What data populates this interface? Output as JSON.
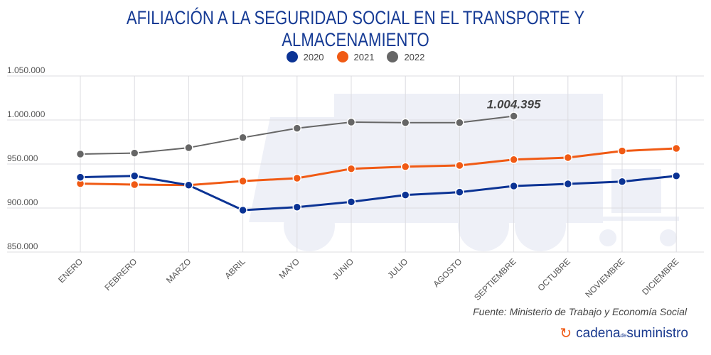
{
  "chart_data": {
    "type": "line",
    "title": "AFILIACIÓN A LA SEGURIDAD SOCIAL EN EL TRANSPORTE Y ALMACENAMIENTO",
    "categories": [
      "ENERO",
      "FEBRERO",
      "MARZO",
      "ABRIL",
      "MAYO",
      "JUNIO",
      "JULIO",
      "AGOSTO",
      "SEPTIEMBRE",
      "OCTUBRE",
      "NOVIEMBRE",
      "DICIEMBRE"
    ],
    "series": [
      {
        "name": "2020",
        "color": "#0b3394",
        "values": [
          935000,
          936500,
          926000,
          897600,
          901000,
          907000,
          914800,
          918000,
          925000,
          927400,
          930000,
          936500
        ]
      },
      {
        "name": "2021",
        "color": "#f05a14",
        "values": [
          927700,
          926600,
          926000,
          930600,
          933900,
          944600,
          947000,
          948400,
          955000,
          957300,
          964800,
          967700
        ]
      },
      {
        "name": "2022",
        "color": "#666666",
        "values": [
          961300,
          962400,
          968500,
          980000,
          990600,
          997600,
          997000,
          997000,
          1004395,
          null,
          null,
          null
        ]
      }
    ],
    "yticks": [
      "850.000",
      "900.000",
      "950.000",
      "1.000.000",
      "1.050.000"
    ],
    "ylim": [
      850000,
      1050000
    ],
    "grid": true,
    "legend_position": "top",
    "annotation": {
      "text": "1.004.395",
      "series": "2022",
      "category": "SEPTIEMBRE"
    }
  },
  "source": "Fuente: Ministerio de Trabajo y Economía Social",
  "logo": {
    "main": "cadena",
    "small": "de",
    "end": "suministro"
  }
}
